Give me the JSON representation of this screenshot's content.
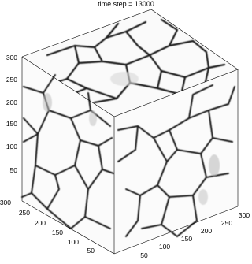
{
  "title": "time step = 13000",
  "axes": {
    "z_ticks": [
      "300",
      "250",
      "200",
      "150",
      "100",
      "50"
    ],
    "y_ticks": [
      "300",
      "250",
      "200",
      "150",
      "100",
      "50"
    ],
    "x_ticks": [
      "50",
      "100",
      "150",
      "200",
      "250",
      "300"
    ]
  },
  "colors": {
    "background": "#ffffff",
    "grain_boundary": "#1c1c1c"
  }
}
